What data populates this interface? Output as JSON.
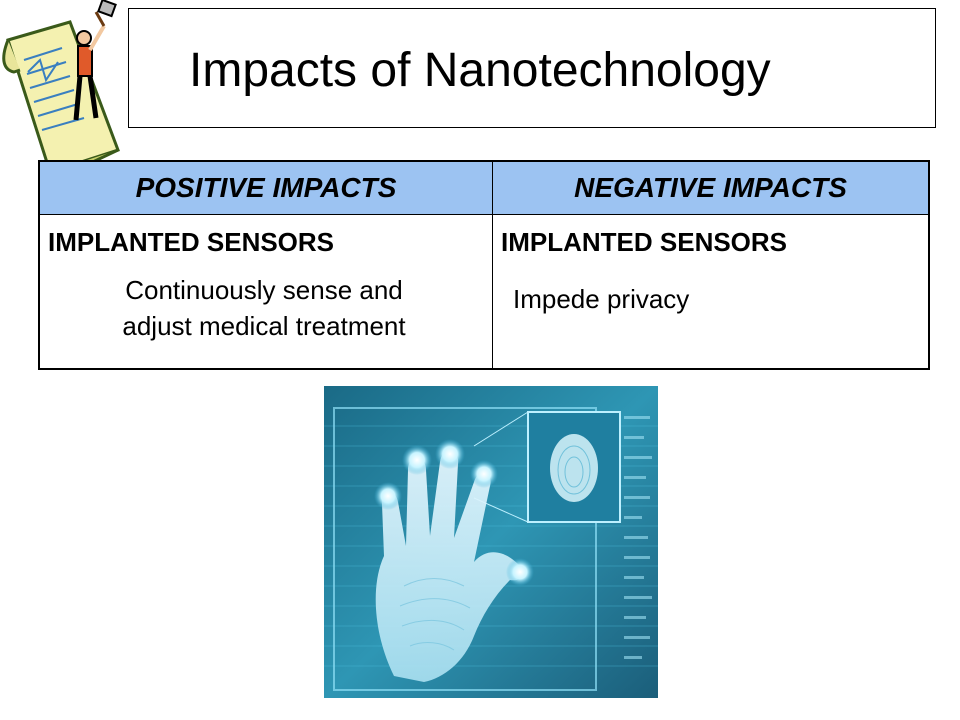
{
  "slide": {
    "title": "Impacts of Nanotechnology"
  },
  "table": {
    "headers": [
      "POSITIVE IMPACTS",
      "NEGATIVE IMPACTS"
    ],
    "positive": {
      "heading": "IMPLANTED SENSORS",
      "line1": "Continuously sense and",
      "line2": "adjust medical treatment"
    },
    "negative": {
      "heading": "IMPLANTED SENSORS",
      "body": "Impede privacy"
    },
    "header_color": "#9cc3f2"
  },
  "images": {
    "clipart": "person-with-hammer-on-document-icon",
    "photo": "handprint-scan-analysis-screen"
  }
}
